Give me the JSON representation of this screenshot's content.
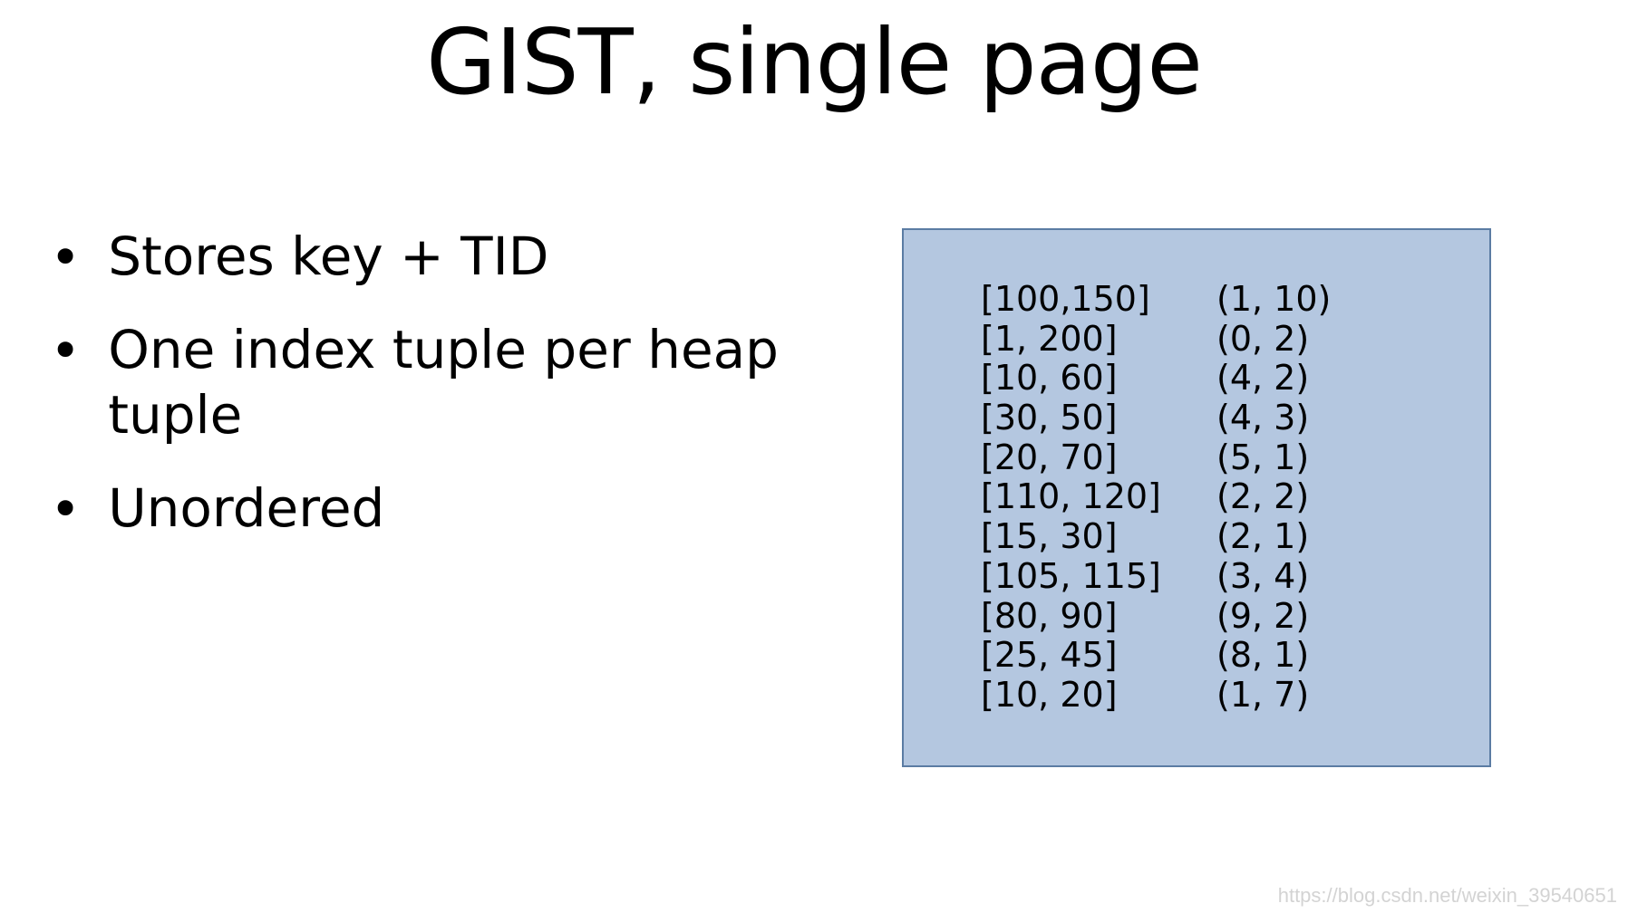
{
  "title": "GIST, single page",
  "bullets": [
    "Stores key + TID",
    "One index tuple per heap tuple",
    "Unordered"
  ],
  "data_box": {
    "background_color": "#b4c7e0",
    "border_color": "#5b7ca3",
    "rows": [
      {
        "key": "[100,150]",
        "tid": "(1, 10)"
      },
      {
        "key": "[1, 200]",
        "tid": "(0, 2)"
      },
      {
        "key": "[10, 60]",
        "tid": "(4, 2)"
      },
      {
        "key": "[30, 50]",
        "tid": "(4, 3)"
      },
      {
        "key": "[20, 70]",
        "tid": "(5, 1)"
      },
      {
        "key": "[110, 120]",
        "tid": "(2, 2)"
      },
      {
        "key": "[15, 30]",
        "tid": "(2, 1)"
      },
      {
        "key": "[105, 115]",
        "tid": "(3, 4)"
      },
      {
        "key": "[80, 90]",
        "tid": "(9, 2)"
      },
      {
        "key": "[25, 45]",
        "tid": "(8, 1)"
      },
      {
        "key": "[10, 20]",
        "tid": "(1, 7)"
      }
    ]
  },
  "watermark": "https://blog.csdn.net/weixin_39540651",
  "style": {
    "title_fontsize": 100,
    "bullet_fontsize": 58,
    "tuple_fontsize": 38,
    "bullet_marker": "•",
    "text_color": "#000000",
    "background_color": "#ffffff"
  }
}
